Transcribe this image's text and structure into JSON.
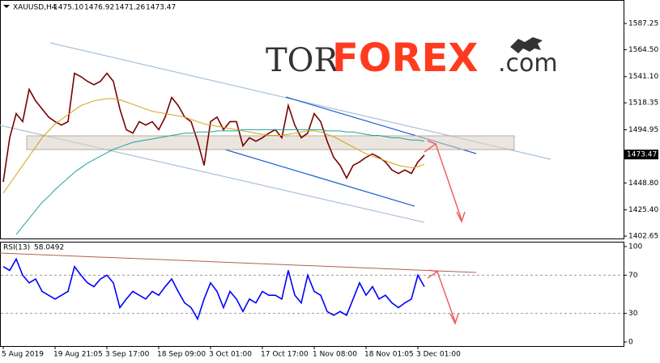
{
  "watermark": {
    "tor": "TOR",
    "forex": "FOREX",
    "com": ".com"
  },
  "chart_data": [
    {
      "type": "line",
      "title": "XAUUSD,H4",
      "ohlc": [
        "1475.10",
        "1476.92",
        "1471.26",
        "1473.47"
      ],
      "categories": [
        "5 Aug 2019",
        null,
        null,
        null,
        null,
        null,
        null,
        null,
        "19 Aug 21:05",
        null,
        null,
        null,
        null,
        null,
        null,
        null,
        "3 Sep 17:00",
        null,
        null,
        null,
        null,
        null,
        null,
        null,
        "18 Sep 09:00",
        null,
        null,
        null,
        null,
        null,
        null,
        null,
        "3 Oct 01:00",
        null,
        null,
        null,
        null,
        null,
        null,
        null,
        "17 Oct 17:00",
        null,
        null,
        null,
        null,
        null,
        null,
        null,
        "1 Nov 08:00",
        null,
        null,
        null,
        null,
        null,
        null,
        null,
        "18 Nov 01:05",
        null,
        null,
        null,
        null,
        null,
        null,
        null,
        "3 Dec 01:00",
        null
      ],
      "series": [
        {
          "color": "#7a0000",
          "values": [
            1449.7,
            1488,
            1509,
            1502,
            1530,
            1520,
            1513,
            1506,
            1502,
            1499,
            1502,
            1544,
            1541,
            1537,
            1534,
            1537,
            1544,
            1537,
            1513,
            1495,
            1492,
            1502,
            1499,
            1502,
            1495,
            1506,
            1523,
            1516,
            1506,
            1502,
            1485,
            1464,
            1502,
            1506,
            1495,
            1502,
            1502,
            1481,
            1488,
            1485,
            1488,
            1492,
            1495,
            1488,
            1516,
            1499,
            1488,
            1492,
            1509,
            1502,
            1485,
            1471,
            1464,
            1453,
            1464,
            1467,
            1471,
            1474,
            1471,
            1467,
            1460,
            1457,
            1460,
            1457,
            1467,
            1473
          ]
        },
        {
          "color": "#d4a017",
          "values": [
            1440,
            1448,
            1456,
            1464,
            1472,
            1480,
            1488,
            1494,
            1500,
            1504,
            1508,
            1512,
            1516,
            1518,
            1520,
            1521,
            1522,
            1522,
            1521,
            1519,
            1517,
            1515,
            1513,
            1511,
            1510,
            1509,
            1508,
            1507,
            1506,
            1504,
            1502,
            1500,
            1499,
            1498,
            1497,
            1496,
            1495,
            1494,
            1493,
            1492,
            1491,
            1490,
            1490,
            1490,
            1491,
            1492,
            1493,
            1494,
            1494,
            1493,
            1491,
            1489,
            1486,
            1483,
            1480,
            1477,
            1474,
            1472,
            1470,
            1468,
            1466,
            1464,
            1463,
            1462,
            1463,
            1465
          ]
        },
        {
          "color": "#20a0a0",
          "values": [
            null,
            null,
            1404,
            1411,
            1418,
            1425,
            1432,
            1437,
            1443,
            1448,
            1453,
            1458,
            1462,
            1466,
            1469,
            1472,
            1475,
            1478,
            1480,
            1482,
            1484,
            1485,
            1486,
            1487,
            1488,
            1489,
            1490,
            1491,
            1492,
            1492,
            1493,
            1493,
            1493,
            1494,
            1494,
            1494,
            1494,
            1495,
            1495,
            1495,
            1495,
            1495,
            1495,
            1495,
            1495,
            1495,
            1495,
            1495,
            1495,
            1495,
            1494,
            1494,
            1494,
            1493,
            1493,
            1492,
            1491,
            1490,
            1490,
            1489,
            1488,
            1488,
            1487,
            1486,
            1486,
            1485
          ]
        }
      ],
      "current_price": 1473.47,
      "ylim": [
        1400.55,
        1607.6
      ],
      "yticks": [
        1587.25,
        {
          "value": 1564.5,
          "label": "1564.50"
        },
        {
          "value": 1541.1,
          "label": "1541.10"
        },
        1518.35,
        1494.95,
        {
          "value": 1448.8,
          "label": "1448.80"
        },
        {
          "value": 1425.4,
          "label": "1425.40"
        },
        1402.65
      ],
      "grid": false
    },
    {
      "type": "line",
      "title": "RSI(13)",
      "last_value": 58.0492,
      "series": [
        {
          "color": "#0000ff",
          "values": [
            79,
            75,
            87,
            70,
            62,
            66,
            53,
            49,
            45,
            49,
            53,
            79,
            70,
            62,
            58,
            66,
            70,
            62,
            36,
            45,
            53,
            49,
            45,
            53,
            49,
            58,
            66,
            53,
            41,
            36,
            24,
            45,
            62,
            53,
            36,
            53,
            45,
            32,
            45,
            41,
            53,
            49,
            49,
            45,
            75,
            49,
            41,
            70,
            53,
            49,
            32,
            28,
            32,
            28,
            45,
            62,
            49,
            58,
            45,
            49,
            41,
            36,
            41,
            45,
            70,
            58
          ]
        }
      ],
      "ylim": [
        -4.2,
        104.2
      ],
      "yticks": [
        100,
        70,
        30,
        0
      ],
      "levels": [
        70,
        30
      ],
      "grid": false
    }
  ]
}
